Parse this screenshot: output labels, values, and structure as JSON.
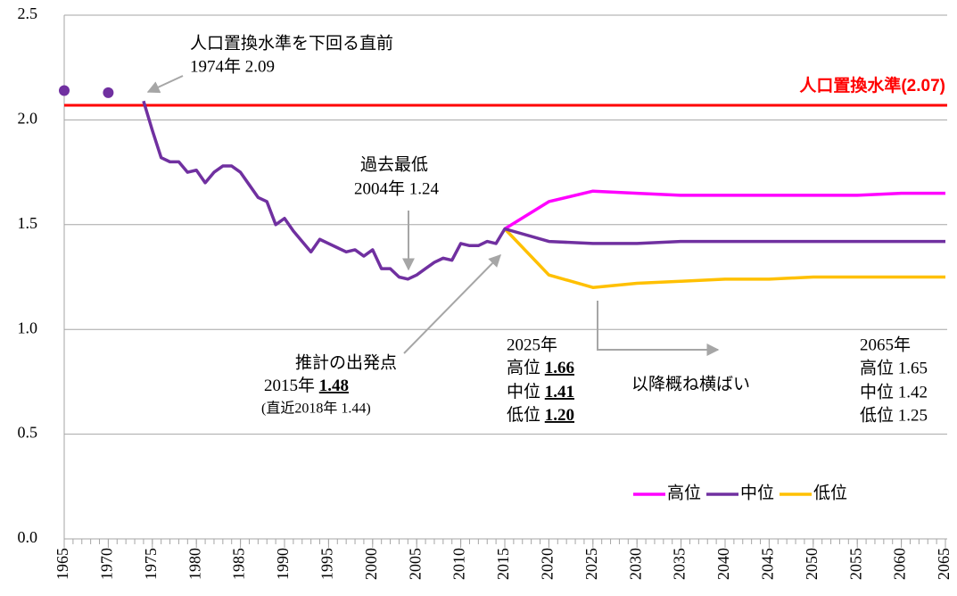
{
  "chart_data": {
    "type": "line",
    "xlim": [
      1965,
      2065
    ],
    "ylim": [
      0,
      2.5
    ],
    "xticks": [
      1965,
      1970,
      1975,
      1980,
      1985,
      1990,
      1995,
      2000,
      2005,
      2010,
      2015,
      2020,
      2025,
      2030,
      2035,
      2040,
      2045,
      2050,
      2055,
      2060,
      2065
    ],
    "yticks": [
      {
        "value": 0,
        "label": "0.0"
      },
      0.5,
      {
        "value": 1,
        "label": "1.0"
      },
      1.5,
      {
        "value": 2,
        "label": "2.0"
      },
      2.5
    ],
    "grid": true,
    "legend": "lower right",
    "dots": {
      "x": [
        1965,
        1970
      ],
      "values": [
        2.14,
        2.13
      ],
      "color": "#7030a0"
    },
    "reference": {
      "value": 2.07,
      "label": "人口置換水準(2.07)",
      "color": "#ff0000"
    },
    "series": [
      {
        "name": "高位",
        "color": "#ff00ff",
        "x": [
          2015,
          2020,
          2025,
          2030,
          2035,
          2040,
          2045,
          2050,
          2055,
          2060,
          2065
        ],
        "values": [
          1.48,
          1.61,
          1.66,
          1.65,
          1.64,
          1.64,
          1.64,
          1.64,
          1.64,
          1.65,
          1.65
        ]
      },
      {
        "name": "中位",
        "color": "#7030a0",
        "x": [
          1974,
          1975,
          1976,
          1977,
          1978,
          1979,
          1980,
          1981,
          1982,
          1983,
          1984,
          1985,
          1986,
          1987,
          1988,
          1989,
          1990,
          1991,
          1992,
          1993,
          1994,
          1995,
          1996,
          1997,
          1998,
          1999,
          2000,
          2001,
          2002,
          2003,
          2004,
          2005,
          2006,
          2007,
          2008,
          2009,
          2010,
          2011,
          2012,
          2013,
          2014,
          2015,
          2020,
          2025,
          2030,
          2035,
          2040,
          2045,
          2050,
          2055,
          2060,
          2065
        ],
        "values": [
          2.09,
          1.95,
          1.82,
          1.8,
          1.8,
          1.75,
          1.76,
          1.7,
          1.75,
          1.78,
          1.78,
          1.75,
          1.69,
          1.63,
          1.61,
          1.5,
          1.53,
          1.47,
          1.42,
          1.37,
          1.43,
          1.41,
          1.39,
          1.37,
          1.38,
          1.35,
          1.38,
          1.29,
          1.29,
          1.25,
          1.24,
          1.26,
          1.29,
          1.32,
          1.34,
          1.33,
          1.41,
          1.4,
          1.4,
          1.42,
          1.41,
          1.48,
          1.42,
          1.41,
          1.41,
          1.42,
          1.42,
          1.42,
          1.42,
          1.42,
          1.42,
          1.42
        ]
      },
      {
        "name": "低位",
        "color": "#ffc000",
        "x": [
          2015,
          2020,
          2025,
          2030,
          2035,
          2040,
          2045,
          2050,
          2055,
          2060,
          2065
        ],
        "values": [
          1.48,
          1.26,
          1.2,
          1.22,
          1.23,
          1.24,
          1.24,
          1.25,
          1.25,
          1.25,
          1.25
        ]
      }
    ],
    "annotations": {
      "replacement_drop": [
        "人口置換水準を下回る直前",
        "1974年 2.09"
      ],
      "lowest": [
        "過去最低",
        "2004年 1.24"
      ],
      "start": {
        "title": "推計の出発点",
        "year": "2015年 ",
        "value": "1.48",
        "note": "(直近2018年 1.44)"
      },
      "y2025": {
        "title": "2025年",
        "rows": [
          {
            "label": "高位 ",
            "value": "1.66"
          },
          {
            "label": "中位 ",
            "value": "1.41"
          },
          {
            "label": "低位 ",
            "value": "1.20"
          }
        ]
      },
      "flat": "以降概ね横ばい",
      "y2065": [
        "2065年",
        "高位 1.65",
        "中位 1.42",
        "低位 1.25"
      ]
    }
  }
}
